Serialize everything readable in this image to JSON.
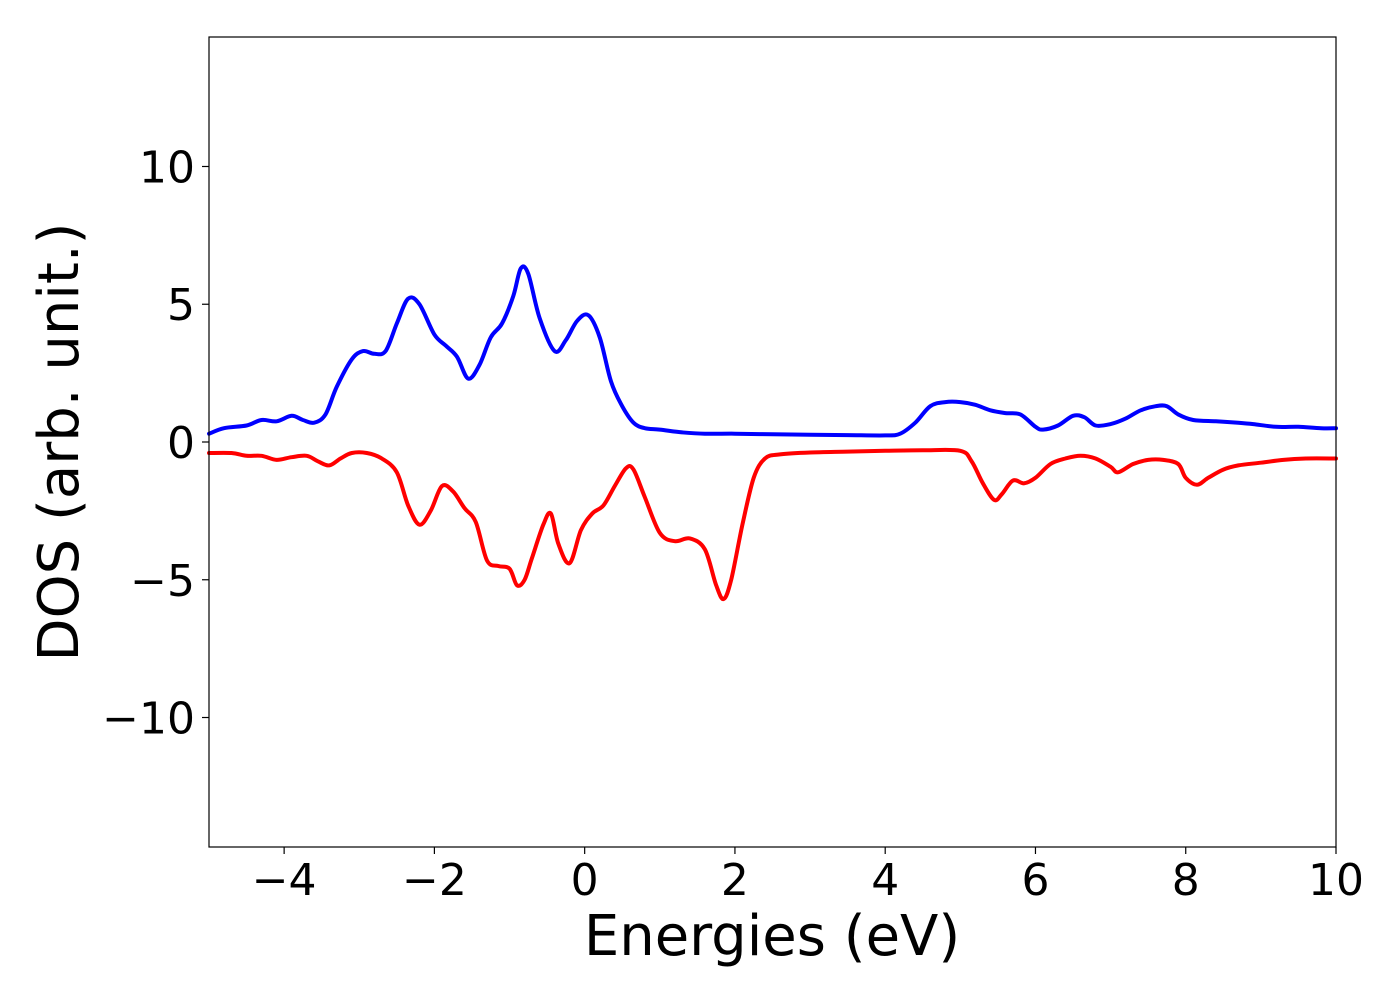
{
  "chart_data": {
    "type": "line",
    "title": "",
    "xlabel": "Energies (eV)",
    "ylabel": "DOS (arb. unit.)",
    "xlim": [
      -5,
      10
    ],
    "ylim": [
      -14.7,
      14.7
    ],
    "grid": false,
    "legend": "none",
    "x_ticks": [
      {
        "value": -4,
        "label": "−4"
      },
      {
        "value": -2,
        "label": "−2"
      },
      {
        "value": 0,
        "label": "0"
      },
      {
        "value": 2,
        "label": "2"
      },
      {
        "value": 4,
        "label": "4"
      },
      {
        "value": 6,
        "label": "6"
      },
      {
        "value": 8,
        "label": "8"
      },
      {
        "value": 10,
        "label": "10"
      }
    ],
    "y_ticks": [
      {
        "value": -10,
        "label": "−10"
      },
      {
        "value": -5,
        "label": "−5"
      },
      {
        "value": 0,
        "label": "0"
      },
      {
        "value": 5,
        "label": "5"
      },
      {
        "value": 10,
        "label": "10"
      }
    ],
    "series": [
      {
        "color": "#0000ff",
        "points": [
          [
            -5.0,
            0.3
          ],
          [
            -4.8,
            0.5
          ],
          [
            -4.5,
            0.6
          ],
          [
            -4.3,
            0.8
          ],
          [
            -4.1,
            0.75
          ],
          [
            -3.9,
            0.95
          ],
          [
            -3.75,
            0.8
          ],
          [
            -3.6,
            0.7
          ],
          [
            -3.45,
            1.0
          ],
          [
            -3.3,
            2.0
          ],
          [
            -3.1,
            3.0
          ],
          [
            -2.95,
            3.3
          ],
          [
            -2.8,
            3.2
          ],
          [
            -2.65,
            3.3
          ],
          [
            -2.5,
            4.3
          ],
          [
            -2.35,
            5.2
          ],
          [
            -2.2,
            5.0
          ],
          [
            -2.0,
            3.9
          ],
          [
            -1.85,
            3.5
          ],
          [
            -1.7,
            3.1
          ],
          [
            -1.55,
            2.3
          ],
          [
            -1.4,
            2.8
          ],
          [
            -1.25,
            3.8
          ],
          [
            -1.1,
            4.3
          ],
          [
            -0.95,
            5.3
          ],
          [
            -0.85,
            6.3
          ],
          [
            -0.75,
            6.1
          ],
          [
            -0.6,
            4.5
          ],
          [
            -0.4,
            3.3
          ],
          [
            -0.25,
            3.7
          ],
          [
            -0.1,
            4.4
          ],
          [
            0.05,
            4.6
          ],
          [
            0.2,
            3.8
          ],
          [
            0.35,
            2.2
          ],
          [
            0.5,
            1.3
          ],
          [
            0.65,
            0.7
          ],
          [
            0.8,
            0.5
          ],
          [
            1.0,
            0.45
          ],
          [
            1.3,
            0.35
          ],
          [
            1.6,
            0.3
          ],
          [
            2.0,
            0.3
          ],
          [
            2.5,
            0.28
          ],
          [
            3.0,
            0.26
          ],
          [
            3.5,
            0.25
          ],
          [
            4.0,
            0.24
          ],
          [
            4.2,
            0.3
          ],
          [
            4.4,
            0.7
          ],
          [
            4.6,
            1.3
          ],
          [
            4.8,
            1.45
          ],
          [
            5.0,
            1.45
          ],
          [
            5.2,
            1.35
          ],
          [
            5.4,
            1.15
          ],
          [
            5.6,
            1.05
          ],
          [
            5.8,
            1.0
          ],
          [
            6.0,
            0.55
          ],
          [
            6.1,
            0.45
          ],
          [
            6.3,
            0.6
          ],
          [
            6.5,
            0.95
          ],
          [
            6.65,
            0.9
          ],
          [
            6.8,
            0.6
          ],
          [
            7.0,
            0.65
          ],
          [
            7.2,
            0.85
          ],
          [
            7.4,
            1.15
          ],
          [
            7.6,
            1.3
          ],
          [
            7.75,
            1.3
          ],
          [
            7.9,
            1.0
          ],
          [
            8.1,
            0.8
          ],
          [
            8.4,
            0.75
          ],
          [
            8.7,
            0.7
          ],
          [
            8.9,
            0.65
          ],
          [
            9.2,
            0.55
          ],
          [
            9.5,
            0.55
          ],
          [
            9.8,
            0.5
          ],
          [
            10.0,
            0.5
          ]
        ]
      },
      {
        "color": "#ff0000",
        "points": [
          [
            -5.0,
            -0.4
          ],
          [
            -4.7,
            -0.4
          ],
          [
            -4.5,
            -0.5
          ],
          [
            -4.3,
            -0.5
          ],
          [
            -4.1,
            -0.65
          ],
          [
            -3.9,
            -0.55
          ],
          [
            -3.7,
            -0.5
          ],
          [
            -3.55,
            -0.7
          ],
          [
            -3.4,
            -0.85
          ],
          [
            -3.25,
            -0.6
          ],
          [
            -3.1,
            -0.4
          ],
          [
            -2.9,
            -0.4
          ],
          [
            -2.7,
            -0.6
          ],
          [
            -2.5,
            -1.1
          ],
          [
            -2.35,
            -2.3
          ],
          [
            -2.2,
            -3.0
          ],
          [
            -2.05,
            -2.5
          ],
          [
            -1.9,
            -1.6
          ],
          [
            -1.75,
            -1.8
          ],
          [
            -1.6,
            -2.4
          ],
          [
            -1.45,
            -2.9
          ],
          [
            -1.3,
            -4.3
          ],
          [
            -1.15,
            -4.5
          ],
          [
            -1.0,
            -4.6
          ],
          [
            -0.9,
            -5.2
          ],
          [
            -0.8,
            -5.0
          ],
          [
            -0.7,
            -4.2
          ],
          [
            -0.55,
            -3.0
          ],
          [
            -0.45,
            -2.6
          ],
          [
            -0.35,
            -3.7
          ],
          [
            -0.2,
            -4.4
          ],
          [
            -0.05,
            -3.2
          ],
          [
            0.1,
            -2.6
          ],
          [
            0.25,
            -2.3
          ],
          [
            0.4,
            -1.6
          ],
          [
            0.55,
            -0.95
          ],
          [
            0.65,
            -1.0
          ],
          [
            0.8,
            -2.0
          ],
          [
            1.0,
            -3.3
          ],
          [
            1.2,
            -3.6
          ],
          [
            1.4,
            -3.5
          ],
          [
            1.6,
            -3.9
          ],
          [
            1.75,
            -5.2
          ],
          [
            1.85,
            -5.7
          ],
          [
            1.95,
            -5.0
          ],
          [
            2.1,
            -3.0
          ],
          [
            2.25,
            -1.3
          ],
          [
            2.4,
            -0.6
          ],
          [
            2.6,
            -0.45
          ],
          [
            3.0,
            -0.38
          ],
          [
            3.5,
            -0.35
          ],
          [
            4.0,
            -0.32
          ],
          [
            4.5,
            -0.3
          ],
          [
            5.0,
            -0.32
          ],
          [
            5.15,
            -0.7
          ],
          [
            5.3,
            -1.5
          ],
          [
            5.45,
            -2.1
          ],
          [
            5.55,
            -1.9
          ],
          [
            5.7,
            -1.4
          ],
          [
            5.85,
            -1.5
          ],
          [
            6.0,
            -1.3
          ],
          [
            6.2,
            -0.8
          ],
          [
            6.4,
            -0.6
          ],
          [
            6.6,
            -0.5
          ],
          [
            6.8,
            -0.6
          ],
          [
            7.0,
            -0.9
          ],
          [
            7.1,
            -1.1
          ],
          [
            7.3,
            -0.8
          ],
          [
            7.5,
            -0.65
          ],
          [
            7.7,
            -0.65
          ],
          [
            7.9,
            -0.8
          ],
          [
            8.0,
            -1.3
          ],
          [
            8.15,
            -1.55
          ],
          [
            8.3,
            -1.3
          ],
          [
            8.5,
            -1.0
          ],
          [
            8.7,
            -0.85
          ],
          [
            9.0,
            -0.75
          ],
          [
            9.3,
            -0.65
          ],
          [
            9.6,
            -0.6
          ],
          [
            10.0,
            -0.6
          ]
        ]
      }
    ]
  }
}
